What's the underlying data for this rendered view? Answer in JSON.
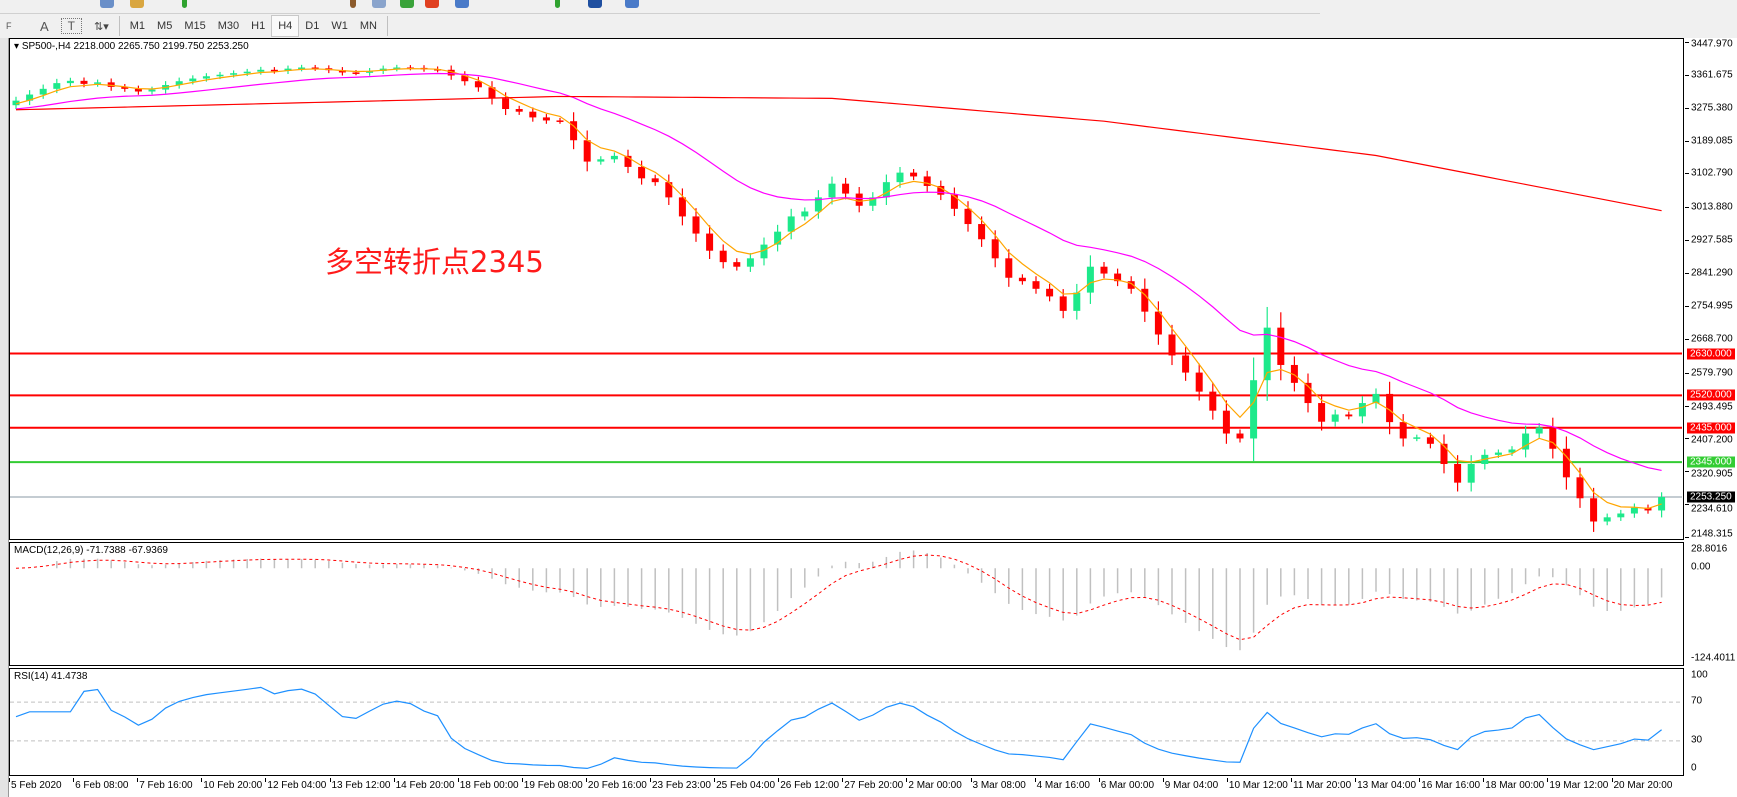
{
  "toolbar": {
    "tools": [
      {
        "icon": "fibonacci-icon",
        "label": "F"
      },
      {
        "icon": "text-icon",
        "label": "A"
      },
      {
        "icon": "text-label-icon",
        "label": "T"
      },
      {
        "icon": "arrows-icon",
        "label": "⇅▾"
      }
    ],
    "timeframes": [
      "M1",
      "M5",
      "M15",
      "M30",
      "H1",
      "H4",
      "D1",
      "W1",
      "MN"
    ],
    "selected_timeframe": "H4"
  },
  "chart": {
    "header": "SP500-,H4  2218.000 2265.750 2199.750 2253.250",
    "annotation": "多空转折点2345",
    "colors": {
      "bull": "#1de98b",
      "bear": "#ff0000",
      "ma_fast": "#ffa500",
      "ma_mid": "#ff00ff",
      "ma_slow": "#ff0000",
      "support": "#33cc33",
      "resistance": "#ff0000"
    }
  },
  "chart_data": [
    {
      "type": "candlestick",
      "symbol": "SP500-",
      "timeframe": "H4",
      "ylim": [
        2148.315,
        3447.97
      ],
      "y_ticks": [
        "3447.970",
        "3361.675",
        "3275.380",
        "3189.085",
        "3102.790",
        "3013.880",
        "2927.585",
        "2841.290",
        "2754.995",
        "2668.700",
        "2579.790",
        "2493.495",
        "2407.200",
        "2320.905",
        "2234.610",
        "2148.315"
      ],
      "x_ticks": [
        "5 Feb 2020",
        "6 Feb 08:00",
        "7 Feb 16:00",
        "10 Feb 20:00",
        "12 Feb 04:00",
        "13 Feb 12:00",
        "14 Feb 20:00",
        "18 Feb 00:00",
        "19 Feb 08:00",
        "20 Feb 16:00",
        "23 Feb 23:00",
        "25 Feb 04:00",
        "26 Feb 12:00",
        "27 Feb 20:00",
        "2 Mar 00:00",
        "3 Mar 08:00",
        "4 Mar 16:00",
        "6 Mar 00:00",
        "9 Mar 04:00",
        "10 Mar 12:00",
        "11 Mar 20:00",
        "13 Mar 04:00",
        "16 Mar 16:00",
        "18 Mar 00:00",
        "19 Mar 12:00",
        "20 Mar 20:00"
      ],
      "closes": [
        3294,
        3310,
        3325,
        3340,
        3346,
        3338,
        3342,
        3330,
        3325,
        3318,
        3323,
        3335,
        3345,
        3352,
        3358,
        3362,
        3366,
        3370,
        3375,
        3372,
        3378,
        3381,
        3379,
        3374,
        3368,
        3367,
        3372,
        3378,
        3381,
        3380,
        3377,
        3375,
        3360,
        3345,
        3329,
        3300,
        3272,
        3265,
        3250,
        3242,
        3240,
        3190,
        3134,
        3140,
        3149,
        3120,
        3090,
        3080,
        3040,
        2990,
        2945,
        2900,
        2870,
        2858,
        2880,
        2916,
        2950,
        2990,
        3003,
        3040,
        3076,
        3050,
        3018,
        3040,
        3080,
        3105,
        3095,
        3070,
        3047,
        3010,
        2970,
        2930,
        2880,
        2829,
        2820,
        2800,
        2780,
        2742,
        2790,
        2858,
        2840,
        2820,
        2800,
        2740,
        2680,
        2625,
        2580,
        2530,
        2480,
        2420,
        2407,
        2560,
        2698,
        2600,
        2553,
        2500,
        2451,
        2470,
        2465,
        2500,
        2524,
        2450,
        2407,
        2410,
        2393,
        2340,
        2291,
        2340,
        2364,
        2370,
        2378,
        2420,
        2436,
        2380,
        2305,
        2250,
        2189,
        2200,
        2210,
        2225,
        2218,
        2253
      ],
      "last_candle": {
        "open": 2218.0,
        "high": 2265.75,
        "low": 2199.75,
        "close": 2253.25
      },
      "slow_ma": [
        [
          0,
          3270
        ],
        [
          40,
          3305
        ],
        [
          60,
          3300
        ],
        [
          80,
          3240
        ],
        [
          100,
          3150
        ],
        [
          121,
          3005
        ]
      ],
      "hlines": [
        {
          "value": 2630,
          "label": "2630.000",
          "color": "#ff0000"
        },
        {
          "value": 2520,
          "label": "2520.000",
          "color": "#ff0000"
        },
        {
          "value": 2435,
          "label": "2435.000",
          "color": "#ff0000"
        },
        {
          "value": 2345,
          "label": "2345.000",
          "color": "#33cc33"
        },
        {
          "value": 2253.25,
          "label": "2253.250",
          "color": "#000000",
          "current": true
        }
      ]
    },
    {
      "type": "bar+line",
      "label": "MACD(12,26,9) -71.7388 -67.9369",
      "ylim": [
        -124.4011,
        28.8016
      ],
      "y_ticks": [
        "28.8016",
        "0.00",
        "-124.4011"
      ]
    },
    {
      "type": "line",
      "label": "RSI(14) 41.4738",
      "ylim": [
        0,
        100
      ],
      "levels": [
        70,
        30
      ],
      "y_ticks": [
        "100",
        "70",
        "30",
        "0"
      ]
    }
  ]
}
